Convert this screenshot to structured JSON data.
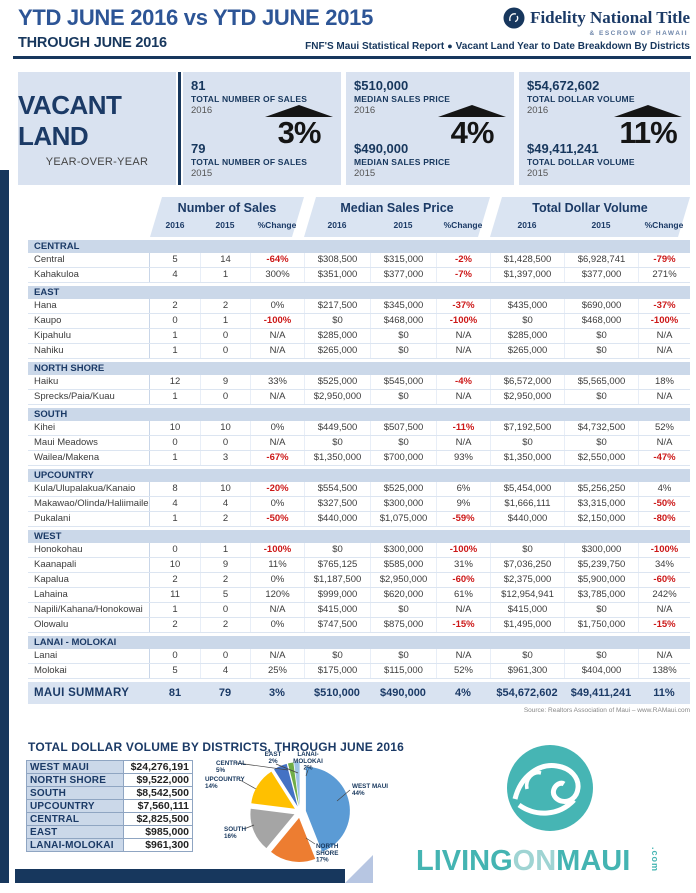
{
  "colors": {
    "navy": "#17375d",
    "title_blue": "#2d5596",
    "red": "#cc1818",
    "teal": "#44b4b2",
    "panel_blue": "#d9e2f0"
  },
  "header": {
    "title": "YTD JUNE 2016 vs YTD JUNE 2015",
    "subtitle": "THROUGH JUNE 2016",
    "brand_name": "Fidelity National Title",
    "brand_sub": "& ESCROW OF HAWAII",
    "report_line_left": "FNF'S Maui Statistical Report",
    "report_separator": "●",
    "report_line_right": "Vacant Land Year to Date Breakdown By Districts"
  },
  "summary": {
    "product": "VACANT LAND",
    "period": "YEAR-OVER-YEAR",
    "metrics": [
      {
        "value_2016": "81",
        "label_2016": "TOTAL NUMBER OF SALES",
        "year_2016": "2016",
        "change": "3%",
        "value_2015": "79",
        "label_2015": "TOTAL NUMBER OF SALES",
        "year_2015": "2015"
      },
      {
        "value_2016": "$510,000",
        "label_2016": "MEDIAN SALES PRICE",
        "year_2016": "2016",
        "change": "4%",
        "value_2015": "$490,000",
        "label_2015": "MEDIAN SALES PRICE",
        "year_2015": "2015"
      },
      {
        "value_2016": "$54,672,602",
        "label_2016": "TOTAL DOLLAR VOLUME",
        "year_2016": "2016",
        "change": "11%",
        "value_2015": "$49,411,241",
        "label_2015": "TOTAL DOLLAR VOLUME",
        "year_2015": "2015"
      }
    ]
  },
  "table": {
    "groups": [
      "Number of Sales",
      "Median Sales Price",
      "Total Dollar Volume"
    ],
    "subcolumns": [
      "2016",
      "2015",
      "%Change"
    ],
    "sections": [
      {
        "name": "CENTRAL",
        "rows": [
          {
            "district": "Central",
            "cells": [
              "5",
              "14",
              "-64%",
              "$308,500",
              "$315,000",
              "-2%",
              "$1,428,500",
              "$6,928,741",
              "-79%"
            ]
          },
          {
            "district": "Kahakuloa",
            "cells": [
              "4",
              "1",
              "300%",
              "$351,000",
              "$377,000",
              "-7%",
              "$1,397,000",
              "$377,000",
              "271%"
            ]
          }
        ]
      },
      {
        "name": "EAST",
        "rows": [
          {
            "district": "Hana",
            "cells": [
              "2",
              "2",
              "0%",
              "$217,500",
              "$345,000",
              "-37%",
              "$435,000",
              "$690,000",
              "-37%"
            ]
          },
          {
            "district": "Kaupo",
            "cells": [
              "0",
              "1",
              "-100%",
              "$0",
              "$468,000",
              "-100%",
              "$0",
              "$468,000",
              "-100%"
            ]
          },
          {
            "district": "Kipahulu",
            "cells": [
              "1",
              "0",
              "N/A",
              "$285,000",
              "$0",
              "N/A",
              "$285,000",
              "$0",
              "N/A"
            ]
          },
          {
            "district": "Nahiku",
            "cells": [
              "1",
              "0",
              "N/A",
              "$265,000",
              "$0",
              "N/A",
              "$265,000",
              "$0",
              "N/A"
            ]
          }
        ]
      },
      {
        "name": "NORTH SHORE",
        "rows": [
          {
            "district": "Haiku",
            "cells": [
              "12",
              "9",
              "33%",
              "$525,000",
              "$545,000",
              "-4%",
              "$6,572,000",
              "$5,565,000",
              "18%"
            ]
          },
          {
            "district": "Sprecks/Paia/Kuau",
            "cells": [
              "1",
              "0",
              "N/A",
              "$2,950,000",
              "$0",
              "N/A",
              "$2,950,000",
              "$0",
              "N/A"
            ]
          }
        ]
      },
      {
        "name": "SOUTH",
        "rows": [
          {
            "district": "Kihei",
            "cells": [
              "10",
              "10",
              "0%",
              "$449,500",
              "$507,500",
              "-11%",
              "$7,192,500",
              "$4,732,500",
              "52%"
            ]
          },
          {
            "district": "Maui Meadows",
            "cells": [
              "0",
              "0",
              "N/A",
              "$0",
              "$0",
              "N/A",
              "$0",
              "$0",
              "N/A"
            ]
          },
          {
            "district": "Wailea/Makena",
            "cells": [
              "1",
              "3",
              "-67%",
              "$1,350,000",
              "$700,000",
              "93%",
              "$1,350,000",
              "$2,550,000",
              "-47%"
            ]
          }
        ]
      },
      {
        "name": "UPCOUNTRY",
        "rows": [
          {
            "district": "Kula/Ulupalakua/Kanaio",
            "cells": [
              "8",
              "10",
              "-20%",
              "$554,500",
              "$525,000",
              "6%",
              "$5,454,000",
              "$5,256,250",
              "4%"
            ]
          },
          {
            "district": "Makawao/Olinda/Haliimaile",
            "cells": [
              "4",
              "4",
              "0%",
              "$327,500",
              "$300,000",
              "9%",
              "$1,666,111",
              "$3,315,000",
              "-50%"
            ]
          },
          {
            "district": "Pukalani",
            "cells": [
              "1",
              "2",
              "-50%",
              "$440,000",
              "$1,075,000",
              "-59%",
              "$440,000",
              "$2,150,000",
              "-80%"
            ]
          }
        ]
      },
      {
        "name": "WEST",
        "rows": [
          {
            "district": "Honokohau",
            "cells": [
              "0",
              "1",
              "-100%",
              "$0",
              "$300,000",
              "-100%",
              "$0",
              "$300,000",
              "-100%"
            ]
          },
          {
            "district": "Kaanapali",
            "cells": [
              "10",
              "9",
              "11%",
              "$765,125",
              "$585,000",
              "31%",
              "$7,036,250",
              "$5,239,750",
              "34%"
            ]
          },
          {
            "district": "Kapalua",
            "cells": [
              "2",
              "2",
              "0%",
              "$1,187,500",
              "$2,950,000",
              "-60%",
              "$2,375,000",
              "$5,900,000",
              "-60%"
            ]
          },
          {
            "district": "Lahaina",
            "cells": [
              "11",
              "5",
              "120%",
              "$999,000",
              "$620,000",
              "61%",
              "$12,954,941",
              "$3,785,000",
              "242%"
            ]
          },
          {
            "district": "Napili/Kahana/Honokowai",
            "cells": [
              "1",
              "0",
              "N/A",
              "$415,000",
              "$0",
              "N/A",
              "$415,000",
              "$0",
              "N/A"
            ]
          },
          {
            "district": "Olowalu",
            "cells": [
              "2",
              "2",
              "0%",
              "$747,500",
              "$875,000",
              "-15%",
              "$1,495,000",
              "$1,750,000",
              "-15%"
            ]
          }
        ]
      },
      {
        "name": "LANAI - MOLOKAI",
        "rows": [
          {
            "district": "Lanai",
            "cells": [
              "0",
              "0",
              "N/A",
              "$0",
              "$0",
              "N/A",
              "$0",
              "$0",
              "N/A"
            ]
          },
          {
            "district": "Molokai",
            "cells": [
              "5",
              "4",
              "25%",
              "$175,000",
              "$115,000",
              "52%",
              "$961,300",
              "$404,000",
              "138%"
            ]
          }
        ]
      }
    ],
    "summary_row": {
      "district": "MAUI SUMMARY",
      "cells": [
        "81",
        "79",
        "3%",
        "$510,000",
        "$490,000",
        "4%",
        "$54,672,602",
        "$49,411,241",
        "11%"
      ]
    },
    "source": "Source: Realtors Association of Maui – www.RAMaui.com"
  },
  "bottom": {
    "title": "TOTAL DOLLAR VOLUME BY DISTRICTS, THROUGH JUNE 2016",
    "volume_table": [
      {
        "district": "WEST MAUI",
        "value": "$24,276,191"
      },
      {
        "district": "NORTH SHORE",
        "value": "$9,522,000"
      },
      {
        "district": "SOUTH",
        "value": "$8,542,500"
      },
      {
        "district": "UPCOUNTRY",
        "value": "$7,560,111"
      },
      {
        "district": "CENTRAL",
        "value": "$2,825,500"
      },
      {
        "district": "EAST",
        "value": "$985,000"
      },
      {
        "district": "LANAI-MOLOKAI",
        "value": "$961,300"
      }
    ]
  },
  "chart_data": {
    "type": "pie",
    "title": "TOTAL DOLLAR VOLUME BY DISTRICTS, THROUGH JUNE 2016",
    "labels": [
      "WEST MAUI",
      "NORTH SHORE",
      "SOUTH",
      "UPCOUNTRY",
      "CENTRAL",
      "EAST",
      "LANAI-MOLOKAI"
    ],
    "values": [
      24276191,
      9522000,
      8542500,
      7560111,
      2825500,
      985000,
      961300
    ],
    "percentages": [
      44,
      17,
      16,
      14,
      5,
      2,
      2
    ],
    "colors": [
      "#5b9bd5",
      "#ed7d31",
      "#a5a5a5",
      "#ffc000",
      "#4472c4",
      "#70ad47",
      "#9dc3e6"
    ],
    "legend": "none",
    "style": "exploded"
  },
  "footer_logo": {
    "part1": "LIVING",
    "part2": "ON",
    "part3": "MAUI",
    "suffix": ".com"
  }
}
